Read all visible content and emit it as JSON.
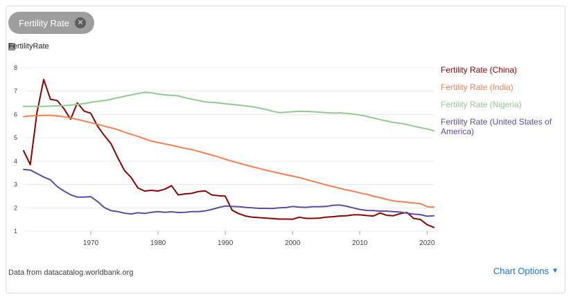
{
  "chip": {
    "label": "Fertility Rate"
  },
  "source_text": "Data from datacatalog.worldbank.org",
  "chart_options_label": "Chart Options",
  "chart_data": {
    "type": "line",
    "ylabel": "FertilityRate",
    "xlabel": "",
    "xlim": [
      1960,
      2021
    ],
    "ylim": [
      1,
      8
    ],
    "xticks": [
      1970,
      1980,
      1990,
      2000,
      2010,
      2020
    ],
    "yticks": [
      1,
      2,
      3,
      4,
      5,
      6,
      7,
      8
    ],
    "grid": "horizontal",
    "legend": "right",
    "series": [
      {
        "name": "Fertility Rate (China)",
        "color": "#8b0000",
        "x": [
          1960,
          1961,
          1962,
          1963,
          1964,
          1965,
          1966,
          1967,
          1968,
          1969,
          1970,
          1971,
          1972,
          1973,
          1974,
          1975,
          1976,
          1977,
          1978,
          1979,
          1980,
          1981,
          1982,
          1983,
          1984,
          1985,
          1986,
          1987,
          1988,
          1989,
          1990,
          1991,
          1992,
          1993,
          1994,
          1995,
          1996,
          1997,
          1998,
          1999,
          2000,
          2001,
          2002,
          2003,
          2004,
          2005,
          2006,
          2007,
          2008,
          2009,
          2010,
          2011,
          2012,
          2013,
          2014,
          2015,
          2016,
          2017,
          2018,
          2019,
          2020,
          2021
        ],
        "y": [
          4.45,
          3.85,
          6.1,
          7.5,
          6.65,
          6.6,
          6.25,
          5.8,
          6.5,
          6.15,
          6.05,
          5.5,
          5.1,
          4.75,
          4.15,
          3.6,
          3.3,
          2.85,
          2.72,
          2.75,
          2.72,
          2.8,
          2.95,
          2.55,
          2.6,
          2.62,
          2.7,
          2.73,
          2.55,
          2.52,
          2.5,
          1.9,
          1.75,
          1.65,
          1.6,
          1.58,
          1.56,
          1.54,
          1.52,
          1.52,
          1.51,
          1.6,
          1.55,
          1.55,
          1.56,
          1.6,
          1.62,
          1.65,
          1.66,
          1.7,
          1.7,
          1.67,
          1.65,
          1.78,
          1.68,
          1.66,
          1.75,
          1.8,
          1.55,
          1.5,
          1.28,
          1.16
        ]
      },
      {
        "name": "Fertility Rate (India)",
        "color": "#f08050",
        "x": [
          1960,
          1961,
          1962,
          1963,
          1964,
          1965,
          1966,
          1967,
          1968,
          1969,
          1970,
          1971,
          1972,
          1973,
          1974,
          1975,
          1976,
          1977,
          1978,
          1979,
          1980,
          1981,
          1982,
          1983,
          1984,
          1985,
          1986,
          1987,
          1988,
          1989,
          1990,
          1991,
          1992,
          1993,
          1994,
          1995,
          1996,
          1997,
          1998,
          1999,
          2000,
          2001,
          2002,
          2003,
          2004,
          2005,
          2006,
          2007,
          2008,
          2009,
          2010,
          2011,
          2012,
          2013,
          2014,
          2015,
          2016,
          2017,
          2018,
          2019,
          2020,
          2021
        ],
        "y": [
          5.91,
          5.94,
          5.95,
          5.96,
          5.96,
          5.94,
          5.9,
          5.85,
          5.79,
          5.72,
          5.65,
          5.58,
          5.5,
          5.43,
          5.35,
          5.24,
          5.15,
          5.06,
          4.96,
          4.86,
          4.8,
          4.74,
          4.68,
          4.62,
          4.55,
          4.5,
          4.42,
          4.34,
          4.26,
          4.18,
          4.08,
          4.0,
          3.92,
          3.84,
          3.76,
          3.69,
          3.62,
          3.55,
          3.49,
          3.42,
          3.36,
          3.3,
          3.22,
          3.14,
          3.06,
          2.98,
          2.91,
          2.84,
          2.77,
          2.71,
          2.64,
          2.58,
          2.5,
          2.44,
          2.36,
          2.3,
          2.27,
          2.24,
          2.21,
          2.18,
          2.05,
          2.03
        ]
      },
      {
        "name": "Fertility Rate (Nigeria)",
        "color": "#8fca8f",
        "x": [
          1960,
          1961,
          1962,
          1963,
          1964,
          1965,
          1966,
          1967,
          1968,
          1969,
          1970,
          1971,
          1972,
          1973,
          1974,
          1975,
          1976,
          1977,
          1978,
          1979,
          1980,
          1981,
          1982,
          1983,
          1984,
          1985,
          1986,
          1987,
          1988,
          1989,
          1990,
          1991,
          1992,
          1993,
          1994,
          1995,
          1996,
          1997,
          1998,
          1999,
          2000,
          2001,
          2002,
          2003,
          2004,
          2005,
          2006,
          2007,
          2008,
          2009,
          2010,
          2011,
          2012,
          2013,
          2014,
          2015,
          2016,
          2017,
          2018,
          2019,
          2020,
          2021
        ],
        "y": [
          6.35,
          6.35,
          6.35,
          6.35,
          6.36,
          6.37,
          6.38,
          6.4,
          6.43,
          6.47,
          6.52,
          6.56,
          6.6,
          6.65,
          6.72,
          6.78,
          6.84,
          6.9,
          6.95,
          6.93,
          6.88,
          6.84,
          6.82,
          6.8,
          6.72,
          6.66,
          6.6,
          6.54,
          6.52,
          6.5,
          6.46,
          6.43,
          6.4,
          6.37,
          6.33,
          6.28,
          6.22,
          6.14,
          6.08,
          6.1,
          6.12,
          6.14,
          6.13,
          6.12,
          6.1,
          6.08,
          6.06,
          6.07,
          6.05,
          6.02,
          5.98,
          5.92,
          5.85,
          5.78,
          5.72,
          5.66,
          5.62,
          5.57,
          5.5,
          5.44,
          5.38,
          5.3
        ]
      },
      {
        "name": "Fertility Rate (United States of America)",
        "color": "#5a4aa0",
        "x": [
          1960,
          1961,
          1962,
          1963,
          1964,
          1965,
          1966,
          1967,
          1968,
          1969,
          1970,
          1971,
          1972,
          1973,
          1974,
          1975,
          1976,
          1977,
          1978,
          1979,
          1980,
          1981,
          1982,
          1983,
          1984,
          1985,
          1986,
          1987,
          1988,
          1989,
          1990,
          1991,
          1992,
          1993,
          1994,
          1995,
          1996,
          1997,
          1998,
          1999,
          2000,
          2001,
          2002,
          2003,
          2004,
          2005,
          2006,
          2007,
          2008,
          2009,
          2010,
          2011,
          2012,
          2013,
          2014,
          2015,
          2016,
          2017,
          2018,
          2019,
          2020,
          2021
        ],
        "y": [
          3.65,
          3.62,
          3.47,
          3.32,
          3.2,
          2.91,
          2.72,
          2.56,
          2.46,
          2.46,
          2.48,
          2.27,
          2.01,
          1.88,
          1.84,
          1.77,
          1.74,
          1.79,
          1.76,
          1.81,
          1.84,
          1.81,
          1.83,
          1.8,
          1.81,
          1.84,
          1.84,
          1.87,
          1.93,
          2.01,
          2.08,
          2.06,
          2.05,
          2.02,
          2.0,
          1.98,
          1.98,
          1.97,
          2.0,
          2.01,
          2.06,
          2.03,
          2.02,
          2.05,
          2.05,
          2.06,
          2.11,
          2.12,
          2.07,
          2.0,
          1.93,
          1.89,
          1.88,
          1.86,
          1.86,
          1.84,
          1.82,
          1.77,
          1.73,
          1.71,
          1.64,
          1.66
        ]
      }
    ]
  }
}
